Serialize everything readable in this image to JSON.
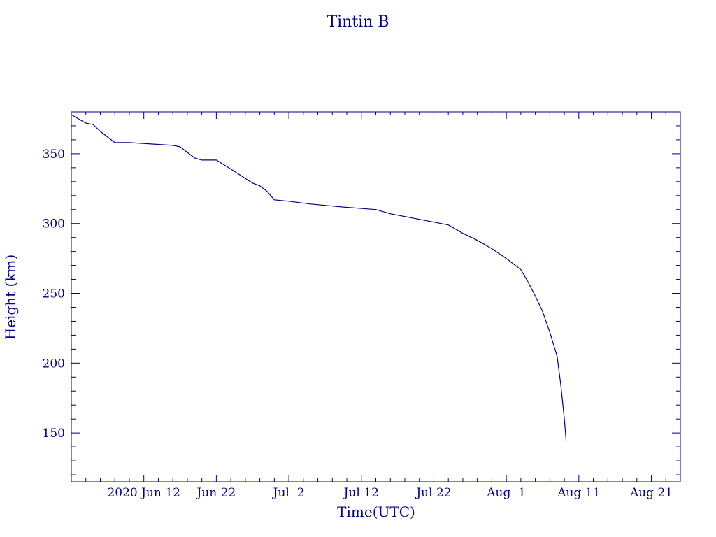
{
  "chart_data": {
    "type": "line",
    "title": "Tintin B",
    "xlabel": "Time(UTC)",
    "ylabel": "Height (km)",
    "x_tick_labels": [
      "2020 Jun 12",
      "Jun 22",
      "Jul  2",
      "Jul 12",
      "Jul 22",
      "Aug  1",
      "Aug 11",
      "Aug 21"
    ],
    "x_tick_dates": [
      "2020-06-12",
      "2020-06-22",
      "2020-07-02",
      "2020-07-12",
      "2020-07-22",
      "2020-08-01",
      "2020-08-11",
      "2020-08-21"
    ],
    "xlim": [
      "2020-06-02",
      "2020-08-25"
    ],
    "y_ticks": [
      150,
      200,
      250,
      300,
      350
    ],
    "ylim": [
      115,
      380
    ],
    "grid": false,
    "color": "#00008b",
    "series": [
      {
        "x": [
          "2020-06-02",
          "2020-06-04",
          "2020-06-05",
          "2020-06-06",
          "2020-06-07",
          "2020-06-08",
          "2020-06-10",
          "2020-06-13",
          "2020-06-16",
          "2020-06-17",
          "2020-06-18",
          "2020-06-19",
          "2020-06-20",
          "2020-06-22",
          "2020-06-24",
          "2020-06-27",
          "2020-06-28",
          "2020-06-29",
          "2020-06-30",
          "2020-07-01",
          "2020-07-02",
          "2020-07-05",
          "2020-07-09",
          "2020-07-14",
          "2020-07-16",
          "2020-07-18",
          "2020-07-20",
          "2020-07-22",
          "2020-07-24",
          "2020-07-26",
          "2020-07-28",
          "2020-07-30",
          "2020-08-01",
          "2020-08-03",
          "2020-08-04",
          "2020-08-05",
          "2020-08-06",
          "2020-08-07",
          "2020-08-08",
          "2020-08-08T12:00",
          "2020-08-09",
          "2020-08-09T06:00"
        ],
        "y": [
          378,
          372,
          371,
          366,
          362,
          358,
          358,
          357,
          356,
          355,
          351,
          347,
          345.5,
          345.5,
          339,
          329,
          327,
          323,
          317,
          316.5,
          316,
          314,
          312,
          310,
          307,
          305,
          303,
          301,
          299,
          293,
          288,
          282,
          275,
          267,
          258,
          248,
          237,
          222,
          205,
          185,
          160,
          144
        ]
      }
    ]
  }
}
